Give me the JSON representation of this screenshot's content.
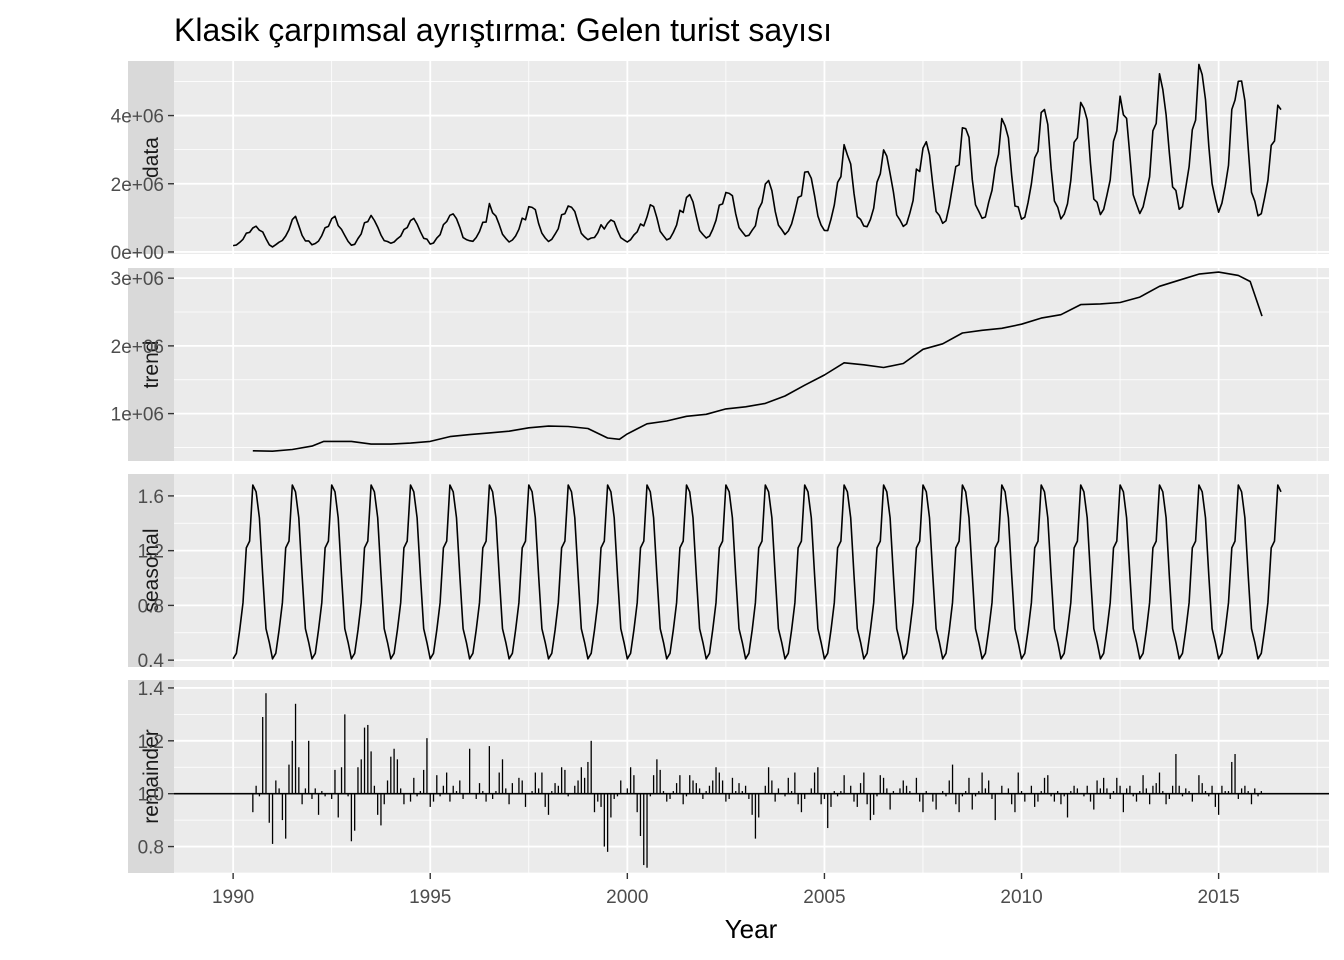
{
  "chart_data": {
    "type": "line",
    "title": "Klasik çarpımsal ayrıştırma: Gelen turist sayısı",
    "xlabel": "Year",
    "xlim": [
      1988.5,
      2017.8
    ],
    "x_ticks": [
      1990,
      1995,
      2000,
      2005,
      2010,
      2015
    ],
    "x_tick_labels": [
      "1990",
      "1995",
      "2000",
      "2005",
      "2010",
      "2015"
    ],
    "grid": true,
    "legend": "none",
    "panels": [
      {
        "name": "data",
        "strip_label": "data",
        "ylim": [
          -60000,
          5600000
        ],
        "y_ticks": [
          0,
          2000000,
          4000000
        ],
        "y_tick_labels": [
          "0e+00",
          "2e+06",
          "4e+06"
        ],
        "mark": "line"
      },
      {
        "name": "trend",
        "strip_label": "trend",
        "ylim": [
          300000,
          3150000
        ],
        "y_ticks": [
          1000000,
          2000000,
          3000000
        ],
        "y_tick_labels": [
          "1e+06",
          "2e+06",
          "3e+06"
        ],
        "mark": "line",
        "values": [
          [
            1990.5,
            450000
          ],
          [
            1991.0,
            445000
          ],
          [
            1991.5,
            470000
          ],
          [
            1992.0,
            520000
          ],
          [
            1992.3,
            590000
          ],
          [
            1993.0,
            590000
          ],
          [
            1993.5,
            550000
          ],
          [
            1994.0,
            550000
          ],
          [
            1994.5,
            565000
          ],
          [
            1995.0,
            590000
          ],
          [
            1995.5,
            660000
          ],
          [
            1996.0,
            690000
          ],
          [
            1996.5,
            715000
          ],
          [
            1997.0,
            740000
          ],
          [
            1997.5,
            790000
          ],
          [
            1998.0,
            815000
          ],
          [
            1998.5,
            810000
          ],
          [
            1999.0,
            780000
          ],
          [
            1999.5,
            640000
          ],
          [
            1999.8,
            620000
          ],
          [
            2000.0,
            700000
          ],
          [
            2000.5,
            850000
          ],
          [
            2001.0,
            890000
          ],
          [
            2001.5,
            960000
          ],
          [
            2002.0,
            990000
          ],
          [
            2002.5,
            1070000
          ],
          [
            2003.0,
            1100000
          ],
          [
            2003.5,
            1150000
          ],
          [
            2004.0,
            1260000
          ],
          [
            2004.5,
            1420000
          ],
          [
            2005.0,
            1570000
          ],
          [
            2005.5,
            1750000
          ],
          [
            2006.0,
            1720000
          ],
          [
            2006.5,
            1680000
          ],
          [
            2007.0,
            1740000
          ],
          [
            2007.5,
            1950000
          ],
          [
            2008.0,
            2030000
          ],
          [
            2008.5,
            2190000
          ],
          [
            2009.0,
            2230000
          ],
          [
            2009.5,
            2260000
          ],
          [
            2010.0,
            2320000
          ],
          [
            2010.5,
            2410000
          ],
          [
            2011.0,
            2460000
          ],
          [
            2011.5,
            2610000
          ],
          [
            2012.0,
            2620000
          ],
          [
            2012.5,
            2640000
          ],
          [
            2013.0,
            2720000
          ],
          [
            2013.5,
            2880000
          ],
          [
            2014.0,
            2970000
          ],
          [
            2014.5,
            3060000
          ],
          [
            2015.0,
            3090000
          ],
          [
            2015.5,
            3040000
          ],
          [
            2015.8,
            2950000
          ],
          [
            2016.1,
            2440000
          ]
        ]
      },
      {
        "name": "seasonal",
        "strip_label": "seasonal",
        "ylim": [
          0.35,
          1.76
        ],
        "y_ticks": [
          0.4,
          0.8,
          1.2,
          1.6
        ],
        "y_tick_labels": [
          "0.4",
          "0.8",
          "1.2",
          "1.6"
        ],
        "mark": "line",
        "start_year": 1990.0,
        "end_year": 2016.6,
        "monthly_factors": [
          0.41,
          0.45,
          0.62,
          0.82,
          1.22,
          1.27,
          1.68,
          1.63,
          1.44,
          1.02,
          0.63,
          0.53
        ]
      },
      {
        "name": "remainder",
        "strip_label": "remainder",
        "ylim": [
          0.7,
          1.43
        ],
        "y_ticks": [
          0.8,
          1.0,
          1.2,
          1.4
        ],
        "y_tick_labels": [
          "0.8",
          "1.0",
          "1.2",
          "1.4"
        ],
        "mark": "bar",
        "baseline": 1.0,
        "start_year": 1990.5,
        "values": [
          0.93,
          1.03,
          0.99,
          1.29,
          1.38,
          0.89,
          0.81,
          1.05,
          1.02,
          0.9,
          0.83,
          1.11,
          1.2,
          1.34,
          1.1,
          0.96,
          1.02,
          1.2,
          0.98,
          1.02,
          0.92,
          1.01,
          0.99,
          1.0,
          0.98,
          1.09,
          0.91,
          1.1,
          1.3,
          0.99,
          0.82,
          0.86,
          1.1,
          1.13,
          1.25,
          1.26,
          1.16,
          1.03,
          0.92,
          0.88,
          0.96,
          1.05,
          1.14,
          1.17,
          1.13,
          1.02,
          0.96,
          1.0,
          0.97,
          1.06,
          0.99,
          1.01,
          1.09,
          1.21,
          0.95,
          0.97,
          1.07,
          0.99,
          1.03,
          1.08,
          0.97,
          1.03,
          1.01,
          1.05,
          0.98,
          1.0,
          1.17,
          1.0,
          0.98,
          1.04,
          1.01,
          0.97,
          1.18,
          0.98,
          1.01,
          1.08,
          1.13,
          1.02,
          0.96,
          1.04,
          1.0,
          1.06,
          1.05,
          0.95,
          1.0,
          1.01,
          1.08,
          1.02,
          1.08,
          0.95,
          0.92,
          1.01,
          1.04,
          1.03,
          1.1,
          1.09,
          0.99,
          1.0,
          1.03,
          1.05,
          1.1,
          1.06,
          1.12,
          1.2,
          0.93,
          0.97,
          0.95,
          0.8,
          0.78,
          0.91,
          0.98,
          0.99,
          1.05,
          1.0,
          1.02,
          1.1,
          1.07,
          0.93,
          0.84,
          0.73,
          0.72,
          0.99,
          1.07,
          1.13,
          1.09,
          1.01,
          0.97,
          0.98,
          1.01,
          1.04,
          1.07,
          0.96,
          0.99,
          1.07,
          1.05,
          1.04,
          1.02,
          0.98,
          1.01,
          1.03,
          1.05,
          1.1,
          1.08,
          1.05,
          0.97,
          0.98,
          1.06,
          1.01,
          1.04,
          1.01,
          1.03,
          0.98,
          0.92,
          0.83,
          0.91,
          1.0,
          1.03,
          1.1,
          1.05,
          0.97,
          1.02,
          1.0,
          0.99,
          1.06,
          1.01,
          1.08,
          0.96,
          0.93,
          0.98,
          1.0,
          1.02,
          1.08,
          1.1,
          0.96,
          0.98,
          0.87,
          0.95,
          1.01,
          0.99,
          1.01,
          1.07,
          1.0,
          1.03,
          0.97,
          0.95,
          1.04,
          1.08,
          0.96,
          0.9,
          0.92,
          0.99,
          1.07,
          1.06,
          1.02,
          0.94,
          1.01,
          1.0,
          1.02,
          1.05,
          1.03,
          1.01,
          1.0,
          1.06,
          0.97,
          0.93,
          1.01,
          1.0,
          0.97,
          0.94,
          1.0,
          1.01,
          0.99,
          1.05,
          1.11,
          0.96,
          0.93,
          0.99,
          1.01,
          1.06,
          0.94,
          0.99,
          1.01,
          1.08,
          1.02,
          1.05,
          0.98,
          0.9,
          1.0,
          1.03,
          1.0,
          1.02,
          0.96,
          0.93,
          1.08,
          1.01,
          0.97,
          1.0,
          1.03,
          0.95,
          0.97,
          1.01,
          1.06,
          1.07,
          0.99,
          0.97,
          1.01,
          0.96,
          0.99,
          0.91,
          1.01,
          1.03,
          1.02,
          1.0,
          0.99,
          1.03,
          0.97,
          0.94,
          1.05,
          1.02,
          1.06,
          1.02,
          0.98,
          1.01,
          1.06,
          1.03,
          0.93,
          1.02,
          1.03,
          0.99,
          0.97,
          1.01,
          1.07,
          1.02,
          0.96,
          1.03,
          1.04,
          1.08,
          1.01,
          0.96,
          0.98,
          1.03,
          1.15,
          1.03,
          0.99,
          1.02,
          1.01,
          0.97,
          1.0,
          1.07,
          1.04,
          1.01,
          0.99,
          1.03,
          0.95,
          0.92,
          1.03,
          1.01,
          1.01,
          1.12,
          1.15,
          0.98,
          1.02,
          1.03,
          1.01,
          0.96,
          1.02,
          0.99,
          1.01
        ]
      }
    ]
  }
}
